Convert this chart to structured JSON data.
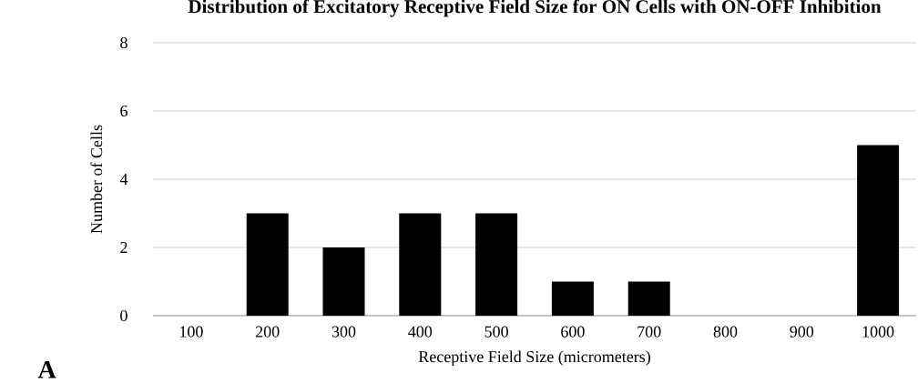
{
  "chart_data": {
    "type": "bar",
    "title": "Distribution of Excitatory Receptive Field Size for ON Cells with ON-OFF Inhibition",
    "xlabel": "Receptive Field Size (micrometers)",
    "ylabel": "Number of Cells",
    "categories": [
      "100",
      "200",
      "300",
      "400",
      "500",
      "600",
      "700",
      "800",
      "900",
      "1000"
    ],
    "values": [
      0,
      3,
      2,
      3,
      3,
      1,
      1,
      0,
      0,
      5
    ],
    "color": "#000000",
    "ylim": [
      0,
      8
    ],
    "yticks": [
      0,
      2,
      4,
      6,
      8
    ],
    "grid": "y",
    "annotations": [
      "A"
    ]
  }
}
